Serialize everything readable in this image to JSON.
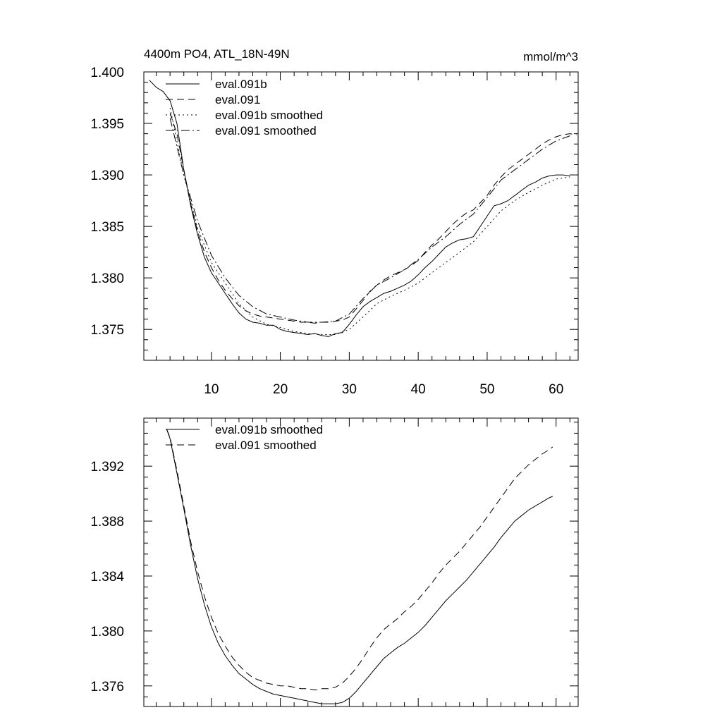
{
  "chart_data": [
    {
      "type": "line",
      "title": "4400m PO4, ATL_18N-49N",
      "units": "mmol/m^3",
      "xlabel": "",
      "ylabel": "",
      "xlim": [
        0.2,
        63.2
      ],
      "ylim": [
        1.372,
        1.4
      ],
      "xticks": [
        10,
        20,
        30,
        40,
        50,
        60
      ],
      "yticks": [
        1.375,
        1.38,
        1.385,
        1.39,
        1.395,
        1.4
      ],
      "ytick_labels": [
        "1.375",
        "1.380",
        "1.385",
        "1.390",
        "1.395",
        "1.400"
      ],
      "grid": false,
      "legend": "top-left",
      "series": [
        {
          "name": "eval.091b",
          "dash": "solid",
          "x": [
            1,
            2,
            3,
            4,
            5,
            6,
            7,
            8,
            9,
            10,
            11,
            12,
            13,
            14,
            15,
            16,
            17,
            18,
            19,
            20,
            21,
            22,
            23,
            24,
            25,
            26,
            27,
            28,
            29,
            30,
            31,
            32,
            33,
            34,
            35,
            36,
            37,
            38,
            39,
            40,
            41,
            42,
            43,
            44,
            45,
            46,
            47,
            48,
            49,
            50,
            51,
            52,
            53,
            54,
            55,
            56,
            57,
            58,
            59,
            60,
            61,
            62
          ],
          "values": [
            1.3992,
            1.3985,
            1.3981,
            1.3972,
            1.395,
            1.3905,
            1.387,
            1.3842,
            1.382,
            1.3805,
            1.3795,
            1.3785,
            1.3775,
            1.3766,
            1.376,
            1.3757,
            1.3756,
            1.3754,
            1.3754,
            1.375,
            1.3748,
            1.3747,
            1.3746,
            1.3745,
            1.3746,
            1.3744,
            1.3743,
            1.3746,
            1.3747,
            1.3755,
            1.3764,
            1.3772,
            1.3777,
            1.3781,
            1.3785,
            1.3787,
            1.379,
            1.3793,
            1.3797,
            1.3803,
            1.381,
            1.3816,
            1.3823,
            1.383,
            1.3834,
            1.3837,
            1.3838,
            1.384,
            1.385,
            1.386,
            1.387,
            1.3872,
            1.3875,
            1.388,
            1.3885,
            1.389,
            1.3893,
            1.3897,
            1.3899,
            1.39,
            1.39,
            1.3899
          ]
        },
        {
          "name": "eval.091",
          "dash": "long-dash",
          "x": [
            4,
            5,
            6,
            7,
            8,
            9,
            10,
            11,
            12,
            13,
            14,
            15,
            16,
            17,
            18,
            19,
            20,
            21,
            22,
            23,
            24,
            25,
            26,
            27,
            28,
            29,
            30,
            31,
            32,
            33,
            34,
            35,
            36,
            37,
            38,
            39,
            40,
            41,
            42,
            43,
            44,
            45,
            46,
            47,
            48,
            49,
            50,
            51,
            52,
            53,
            54,
            55,
            56,
            57,
            58,
            59,
            60,
            61,
            62,
            63
          ],
          "values": [
            1.396,
            1.394,
            1.3905,
            1.3872,
            1.3845,
            1.3825,
            1.381,
            1.3798,
            1.3788,
            1.378,
            1.3773,
            1.3768,
            1.3765,
            1.3763,
            1.3762,
            1.3761,
            1.376,
            1.3759,
            1.3758,
            1.3757,
            1.3757,
            1.3756,
            1.3757,
            1.3757,
            1.3758,
            1.3759,
            1.3762,
            1.377,
            1.3778,
            1.3787,
            1.3793,
            1.3798,
            1.3802,
            1.3805,
            1.3808,
            1.3812,
            1.3817,
            1.3825,
            1.3832,
            1.3838,
            1.3845,
            1.3852,
            1.3858,
            1.3863,
            1.3866,
            1.3873,
            1.388,
            1.389,
            1.3898,
            1.3905,
            1.391,
            1.3915,
            1.392,
            1.3925,
            1.393,
            1.3934,
            1.3937,
            1.3939,
            1.394,
            1.3939
          ]
        },
        {
          "name": "eval.091b smoothed",
          "dash": "dotted",
          "x": [
            4,
            6,
            8,
            10,
            12,
            14,
            16,
            18,
            20,
            22,
            24,
            26,
            28,
            30,
            32,
            34,
            36,
            38,
            40,
            42,
            44,
            46,
            48,
            50,
            52,
            54,
            56,
            58,
            60,
            62
          ],
          "values": [
            1.3965,
            1.39,
            1.3848,
            1.3815,
            1.3795,
            1.3775,
            1.3762,
            1.3755,
            1.3752,
            1.3748,
            1.3746,
            1.3745,
            1.3745,
            1.375,
            1.3762,
            1.3775,
            1.3782,
            1.3788,
            1.3795,
            1.3805,
            1.3815,
            1.3825,
            1.3835,
            1.385,
            1.3865,
            1.3875,
            1.3883,
            1.389,
            1.3896,
            1.3898
          ]
        },
        {
          "name": "eval.091 smoothed",
          "dash": "dash-dot",
          "x": [
            4,
            6,
            8,
            10,
            12,
            14,
            16,
            18,
            20,
            22,
            24,
            26,
            28,
            30,
            32,
            34,
            36,
            38,
            40,
            42,
            44,
            46,
            48,
            50,
            52,
            54,
            56,
            58,
            60,
            62
          ],
          "values": [
            1.3955,
            1.39,
            1.3855,
            1.3822,
            1.38,
            1.3783,
            1.3772,
            1.3765,
            1.3762,
            1.3759,
            1.3757,
            1.3757,
            1.3758,
            1.3765,
            1.378,
            1.3793,
            1.38,
            1.3808,
            1.3818,
            1.383,
            1.384,
            1.3852,
            1.3862,
            1.3878,
            1.3895,
            1.3905,
            1.3915,
            1.3925,
            1.3933,
            1.3938
          ]
        }
      ]
    },
    {
      "type": "line",
      "title": "",
      "xlabel": "",
      "ylabel": "",
      "xlim": [
        0.2,
        63.2
      ],
      "ylim": [
        1.3745,
        1.3955
      ],
      "xticks": [
        10,
        20,
        30,
        40,
        50,
        60
      ],
      "yticks": [
        1.376,
        1.38,
        1.384,
        1.388,
        1.392
      ],
      "ytick_labels": [
        "1.376",
        "1.380",
        "1.384",
        "1.388",
        "1.392"
      ],
      "grid": false,
      "legend": "top-left",
      "series": [
        {
          "name": "eval.091b smoothed",
          "dash": "solid",
          "x": [
            3.5,
            4,
            5,
            6,
            7,
            8,
            9,
            10,
            11,
            12,
            13,
            14,
            15,
            16,
            17,
            18,
            19,
            20,
            21,
            22,
            23,
            24,
            25,
            26,
            27,
            28,
            29,
            30,
            31,
            32,
            33,
            34,
            35,
            36,
            37,
            38,
            39,
            40,
            41,
            42,
            43,
            44,
            45,
            46,
            47,
            48,
            49,
            50,
            51,
            52,
            53,
            54,
            55,
            56,
            57,
            58,
            59,
            59.5
          ],
          "values": [
            1.3947,
            1.394,
            1.3915,
            1.3889,
            1.3862,
            1.3838,
            1.3819,
            1.3803,
            1.3791,
            1.3782,
            1.3775,
            1.3769,
            1.3765,
            1.3761,
            1.3758,
            1.3756,
            1.3754,
            1.3753,
            1.3752,
            1.3751,
            1.375,
            1.3749,
            1.3748,
            1.3747,
            1.3747,
            1.3747,
            1.3748,
            1.3751,
            1.3756,
            1.3762,
            1.3768,
            1.3774,
            1.378,
            1.3784,
            1.3788,
            1.3791,
            1.3795,
            1.3799,
            1.3804,
            1.381,
            1.3816,
            1.3822,
            1.3827,
            1.3832,
            1.3837,
            1.3843,
            1.3849,
            1.3855,
            1.3861,
            1.3868,
            1.3874,
            1.388,
            1.3884,
            1.3888,
            1.3891,
            1.3894,
            1.3897,
            1.3898
          ]
        },
        {
          "name": "eval.091 smoothed",
          "dash": "long-dash",
          "x": [
            3.5,
            4,
            5,
            6,
            7,
            8,
            9,
            10,
            11,
            12,
            13,
            14,
            15,
            16,
            17,
            18,
            19,
            20,
            21,
            22,
            23,
            24,
            25,
            26,
            27,
            28,
            29,
            30,
            31,
            32,
            33,
            34,
            35,
            36,
            37,
            38,
            39,
            40,
            41,
            42,
            43,
            44,
            45,
            46,
            47,
            48,
            49,
            50,
            51,
            52,
            53,
            54,
            55,
            56,
            57,
            58,
            59,
            59.5
          ],
          "values": [
            1.3947,
            1.3941,
            1.3917,
            1.3891,
            1.3865,
            1.3843,
            1.3825,
            1.381,
            1.3798,
            1.3789,
            1.3781,
            1.3775,
            1.377,
            1.3766,
            1.3764,
            1.3762,
            1.3761,
            1.376,
            1.376,
            1.3759,
            1.3758,
            1.3758,
            1.3757,
            1.3758,
            1.3758,
            1.3759,
            1.3762,
            1.3767,
            1.3773,
            1.378,
            1.3788,
            1.3795,
            1.3801,
            1.3805,
            1.3809,
            1.3814,
            1.3818,
            1.3823,
            1.3829,
            1.3835,
            1.3842,
            1.3848,
            1.3853,
            1.3858,
            1.3864,
            1.387,
            1.3876,
            1.3883,
            1.389,
            1.3897,
            1.3904,
            1.3911,
            1.3916,
            1.3921,
            1.3925,
            1.3929,
            1.3932,
            1.3934
          ]
        }
      ]
    }
  ]
}
